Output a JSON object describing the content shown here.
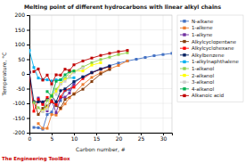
{
  "chart_data": {
    "type": "line",
    "title": "Melting point of different hydrocarbons with linear alkyl chains",
    "x_label": "Carbon number, #",
    "y_label": "Temperature, °C",
    "xlim": [
      0,
      32
    ],
    "ylim": [
      -200,
      200
    ],
    "xticks": [
      0,
      5,
      10,
      15,
      20,
      25,
      30
    ],
    "yticks": [
      -200,
      -150,
      -100,
      -50,
      0,
      50,
      100,
      150,
      200
    ],
    "grid": true,
    "legend": "right",
    "marker": "square",
    "line_style": "solid",
    "annotations": [
      {
        "text": "The Engineering ToolBox",
        "color": "#CC0000"
      }
    ],
    "series": [
      {
        "name": "N-alkane",
        "color": "#4472C4",
        "x": [
          1,
          2,
          3,
          4,
          5,
          6,
          7,
          8,
          9,
          10,
          12,
          14,
          16,
          18,
          20,
          22,
          24,
          26,
          28,
          30,
          32
        ],
        "values": [
          -182,
          -183,
          -188,
          -138,
          -130,
          -95,
          -91,
          -57,
          -54,
          -30,
          -10,
          6,
          18,
          28,
          37,
          44,
          50,
          56,
          62,
          66,
          70
        ]
      },
      {
        "name": "1-alkene",
        "color": "#ED7D31",
        "x": [
          2,
          3,
          4,
          5,
          6,
          7,
          8,
          9,
          10,
          12,
          14,
          16,
          18,
          20,
          22
        ],
        "values": [
          -169,
          -185,
          -185,
          -138,
          -140,
          -119,
          -102,
          -81,
          -67,
          -36,
          -12,
          4,
          17,
          29,
          44
        ]
      },
      {
        "name": "1-alkyne",
        "color": "#7030A0",
        "x": [
          2,
          3,
          4,
          5,
          6,
          7,
          8,
          9,
          10
        ],
        "values": [
          -82,
          -102,
          -126,
          -90,
          -132,
          -81,
          -79,
          -65,
          -36
        ]
      },
      {
        "name": "Alkylcyclopentane",
        "color": "#843C0C",
        "x": [
          1,
          2,
          3,
          4,
          5,
          6,
          7,
          8,
          10,
          12,
          14,
          16,
          18
        ],
        "values": [
          -94,
          -138,
          -117,
          -109,
          -94,
          -108,
          -116,
          -87,
          -69,
          -52,
          -26,
          0,
          15
        ]
      },
      {
        "name": "Alkylcyclohexane",
        "color": "#FF0000",
        "x": [
          0,
          1,
          2,
          3,
          4,
          5,
          6,
          7,
          8,
          10,
          12,
          14,
          16,
          18
        ],
        "values": [
          6,
          -127,
          -87,
          -104,
          -80,
          -94,
          -103,
          -78,
          -55,
          -45,
          -16,
          4,
          16,
          25
        ]
      },
      {
        "name": "Alkylbenzene",
        "color": "#002060",
        "x": [
          0,
          1,
          2,
          3,
          4,
          5,
          6,
          7,
          8,
          10,
          12,
          14,
          16,
          18
        ],
        "values": [
          6,
          -95,
          -95,
          -95,
          -88,
          -75,
          -95,
          -57,
          -51,
          -26,
          -10,
          4,
          16,
          26
        ]
      },
      {
        "name": "1-alkylnaphthalene",
        "color": "#00B0F0",
        "x": [
          0,
          1,
          2,
          3,
          4,
          5,
          6,
          7,
          8,
          10
        ],
        "values": [
          80,
          22,
          -14,
          -19,
          -20,
          -24,
          -20,
          -20,
          -16,
          -13
        ]
      },
      {
        "name": "1-alkanol",
        "color": "#92D050",
        "x": [
          1,
          2,
          3,
          4,
          5,
          6,
          7,
          8,
          9,
          10,
          12,
          14,
          16,
          18,
          20,
          22
        ],
        "values": [
          -97,
          -115,
          -127,
          -90,
          -78,
          -52,
          -34,
          -15,
          6,
          7,
          24,
          38,
          49,
          57,
          66,
          72
        ]
      },
      {
        "name": "2-alkanol",
        "color": "#FFFF00",
        "x": [
          3,
          4,
          5,
          6,
          7,
          8,
          9,
          10,
          12,
          14,
          16
        ],
        "values": [
          -126,
          -115,
          -73,
          -60,
          -32,
          -19,
          -9,
          10,
          10,
          30,
          38
        ]
      },
      {
        "name": "3-alkanol",
        "color": "#D0CECE",
        "x": [
          3,
          4,
          5,
          6,
          7,
          8,
          9,
          10,
          12
        ],
        "values": [
          -128,
          -120,
          -40,
          -70,
          -35,
          -25,
          -8,
          5,
          20
        ]
      },
      {
        "name": "4-alkanol",
        "color": "#00B050",
        "x": [
          4,
          5,
          6,
          7,
          8,
          9,
          10
        ],
        "values": [
          -60,
          -75,
          -25,
          -20,
          -3,
          8,
          10
        ]
      },
      {
        "name": "Alkanoic acid",
        "color": "#C00000",
        "x": [
          1,
          2,
          3,
          4,
          5,
          6,
          7,
          8,
          9,
          10,
          12,
          14,
          16,
          18,
          20,
          22
        ],
        "values": [
          8,
          17,
          -21,
          -4,
          -34,
          -3,
          -4,
          16,
          12,
          31,
          44,
          54,
          63,
          70,
          76,
          80
        ]
      }
    ]
  }
}
